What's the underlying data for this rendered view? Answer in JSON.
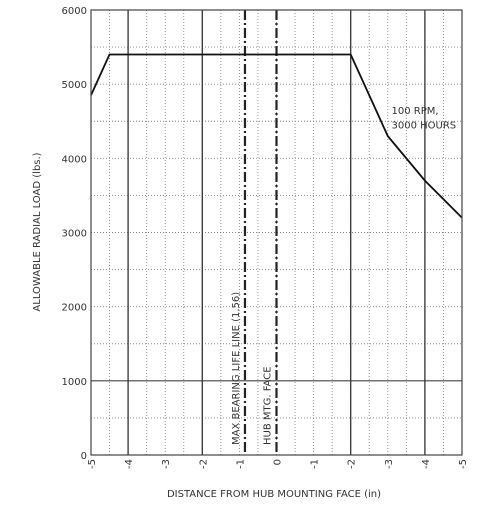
{
  "chart_data": {
    "type": "line",
    "xlabel": "DISTANCE FROM HUB MOUNTING FACE (in)",
    "ylabel": "ALLOWABLE RADIAL LOAD (lbs.)",
    "x_ticks": [
      "-5",
      "-4",
      "-3",
      "-2",
      "-1",
      "0",
      "-1",
      "-2",
      "-3",
      "-4",
      "-5"
    ],
    "x_tick_values": [
      -5,
      -4,
      -3,
      -2,
      -1,
      0,
      1,
      2,
      3,
      4,
      5
    ],
    "y_ticks": [
      "0",
      "1000",
      "2000",
      "3000",
      "4000",
      "5000",
      "6000"
    ],
    "y_tick_values": [
      0,
      1000,
      2000,
      3000,
      4000,
      5000,
      6000
    ],
    "xlim": [
      -5,
      5
    ],
    "ylim": [
      0,
      6000
    ],
    "grid": "dotted",
    "series": [
      {
        "name": "100 RPM, 3000 HOURS",
        "x": [
          -5.0,
          -4.5,
          2.0,
          3.0,
          4.0,
          5.0
        ],
        "y": [
          4850,
          5400,
          5400,
          4300,
          3700,
          3200
        ]
      }
    ],
    "reference_lines": [
      {
        "x": -0.85,
        "label": "MAX BEARING LIFE LINE (1.56)",
        "style": "dash-dot"
      },
      {
        "x": 0.0,
        "label": "HUB MTG. FACE",
        "style": "dash-dot"
      }
    ],
    "annotations": [
      {
        "text": "100 RPM,",
        "x": 3.1,
        "y": 4600
      },
      {
        "text": "3000 HOURS",
        "x": 3.1,
        "y": 4400
      }
    ]
  }
}
